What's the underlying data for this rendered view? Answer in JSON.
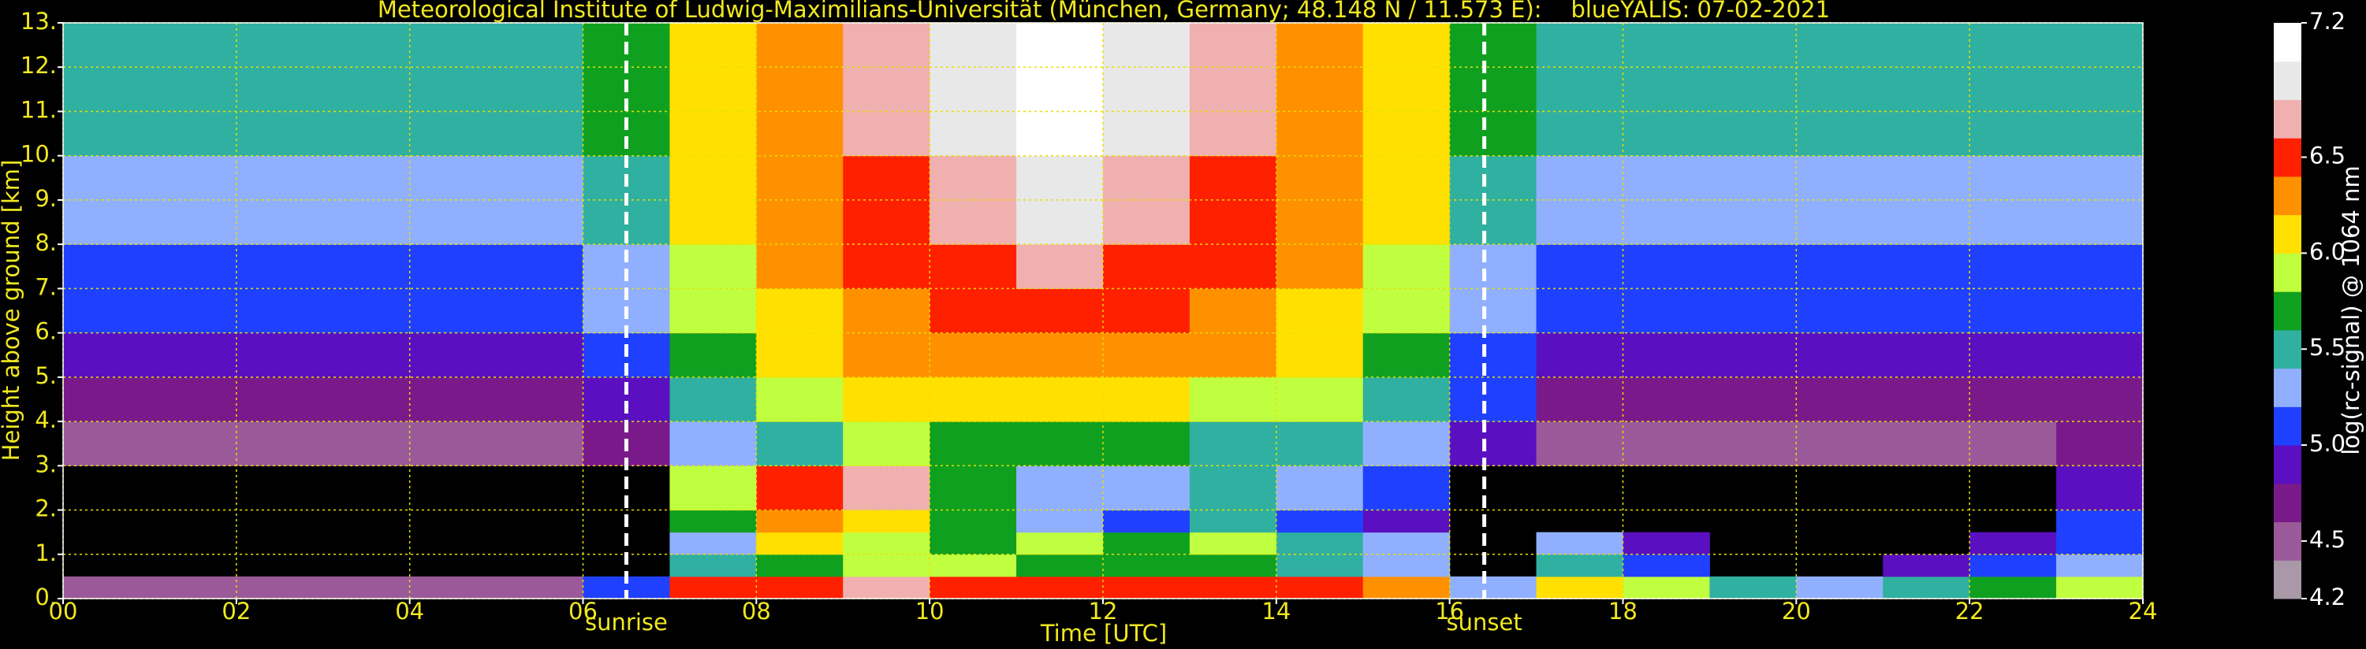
{
  "chart_data": {
    "type": "heatmap",
    "title": "Meteorological Institute of Ludwig-Maximilians-Universität (München, Germany; 48.148 N / 11.573 E):    blueYALIS: 07-02-2021",
    "x_label": "Time [UTC]",
    "y_label": "Height above ground [km]",
    "colorbar_label": "log(rc-signal) @ 1064 nm",
    "x": [
      0,
      1,
      2,
      3,
      4,
      5,
      6,
      7,
      8,
      9,
      10,
      11,
      12,
      13,
      14,
      15,
      16,
      17,
      18,
      19,
      20,
      21,
      22,
      23,
      24
    ],
    "y": [
      0,
      0.5,
      1,
      1.5,
      2,
      3,
      4,
      5,
      6,
      7,
      8,
      10,
      13
    ],
    "z": [
      [
        4.4,
        4.4,
        4.4,
        4.4,
        4.4,
        4.4,
        5.0,
        6.5,
        6.4,
        6.6,
        6.5,
        6.5,
        6.5,
        6.4,
        6.4,
        6.3,
        5.2,
        6.0,
        5.8,
        5.4,
        5.2,
        5.4,
        5.6,
        5.8
      ],
      [
        null,
        null,
        null,
        null,
        null,
        null,
        null,
        5.4,
        5.6,
        5.8,
        5.8,
        5.7,
        5.6,
        5.6,
        5.5,
        5.3,
        null,
        5.4,
        5.0,
        null,
        null,
        4.8,
        5.0,
        5.2
      ],
      [
        null,
        null,
        null,
        null,
        null,
        null,
        null,
        5.2,
        6.0,
        5.8,
        5.6,
        5.8,
        5.6,
        5.8,
        5.4,
        5.2,
        null,
        5.2,
        4.8,
        null,
        null,
        null,
        4.8,
        5.0
      ],
      [
        null,
        null,
        null,
        null,
        null,
        null,
        null,
        5.6,
        6.2,
        6.0,
        5.6,
        5.2,
        5.0,
        5.4,
        5.0,
        4.8,
        null,
        null,
        null,
        null,
        null,
        null,
        null,
        5.0
      ],
      [
        null,
        null,
        null,
        null,
        null,
        null,
        null,
        5.8,
        6.4,
        6.6,
        5.6,
        5.2,
        5.2,
        5.4,
        5.2,
        5.0,
        null,
        null,
        null,
        null,
        null,
        null,
        null,
        4.8
      ],
      [
        4.4,
        4.4,
        4.4,
        4.4,
        4.4,
        4.4,
        4.6,
        5.2,
        5.4,
        5.8,
        5.6,
        5.6,
        5.6,
        5.4,
        5.4,
        5.2,
        4.8,
        4.4,
        4.4,
        4.4,
        4.4,
        4.4,
        4.4,
        4.6
      ],
      [
        4.6,
        4.6,
        4.6,
        4.6,
        4.6,
        4.6,
        4.8,
        5.4,
        5.8,
        6.0,
        6.0,
        6.0,
        6.0,
        5.8,
        5.8,
        5.4,
        5.0,
        4.6,
        4.6,
        4.6,
        4.6,
        4.6,
        4.6,
        4.6
      ],
      [
        4.8,
        4.8,
        4.8,
        4.8,
        4.8,
        4.8,
        5.0,
        5.6,
        6.0,
        6.2,
        6.2,
        6.2,
        6.2,
        6.2,
        6.0,
        5.6,
        5.0,
        4.8,
        4.8,
        4.8,
        4.8,
        4.8,
        4.8,
        4.8
      ],
      [
        5.0,
        5.0,
        5.0,
        5.0,
        5.0,
        5.0,
        5.2,
        5.8,
        6.0,
        6.2,
        6.4,
        6.4,
        6.4,
        6.2,
        6.0,
        5.8,
        5.2,
        5.0,
        5.0,
        5.0,
        5.0,
        5.0,
        5.0,
        5.0
      ],
      [
        5.0,
        5.0,
        5.0,
        5.0,
        5.0,
        5.0,
        5.2,
        5.8,
        6.2,
        6.4,
        6.4,
        6.6,
        6.4,
        6.4,
        6.2,
        5.8,
        5.2,
        5.0,
        5.0,
        5.0,
        5.0,
        5.0,
        5.0,
        5.0
      ],
      [
        5.2,
        5.2,
        5.2,
        5.2,
        5.2,
        5.2,
        5.4,
        6.0,
        6.2,
        6.4,
        6.6,
        6.8,
        6.6,
        6.4,
        6.2,
        6.0,
        5.4,
        5.2,
        5.2,
        5.2,
        5.2,
        5.2,
        5.2,
        5.2
      ],
      [
        5.4,
        5.4,
        5.4,
        5.4,
        5.4,
        5.4,
        5.6,
        6.0,
        6.2,
        6.6,
        6.8,
        7.0,
        6.8,
        6.6,
        6.2,
        6.0,
        5.6,
        5.4,
        5.4,
        5.4,
        5.4,
        5.4,
        5.4,
        5.4
      ]
    ],
    "xlim": [
      0,
      24
    ],
    "ylim": [
      0,
      13
    ],
    "xticks": [
      {
        "value": 0,
        "label": "00"
      },
      {
        "value": 2,
        "label": "02"
      },
      {
        "value": 4,
        "label": "04"
      },
      {
        "value": 6,
        "label": "06"
      },
      {
        "value": 8,
        "label": "08"
      },
      10,
      12,
      14,
      16,
      18,
      20,
      22,
      24
    ],
    "yticks": [
      {
        "value": 0,
        "label": "0."
      },
      {
        "value": 1,
        "label": "1."
      },
      {
        "value": 2,
        "label": "2."
      },
      {
        "value": 3,
        "label": "3."
      },
      {
        "value": 4,
        "label": "4."
      },
      {
        "value": 5,
        "label": "5."
      },
      {
        "value": 6,
        "label": "6."
      },
      {
        "value": 7,
        "label": "7."
      },
      {
        "value": 8,
        "label": "8."
      },
      {
        "value": 9,
        "label": "9."
      },
      {
        "value": 10,
        "label": "10."
      },
      {
        "value": 11,
        "label": "11."
      },
      {
        "value": 12,
        "label": "12."
      },
      {
        "value": 13,
        "label": "13."
      }
    ],
    "grid": true,
    "grid_color": "#e8e000",
    "colormap": {
      "bounds": [
        4.2,
        4.4,
        4.6,
        4.8,
        5.0,
        5.2,
        5.4,
        5.6,
        5.8,
        6.0,
        6.2,
        6.4,
        6.6,
        6.8,
        7.0,
        7.2
      ],
      "colors": [
        "#a898a8",
        "#9a5a9a",
        "#7a1a8a",
        "#5a10c0",
        "#2040ff",
        "#90b0ff",
        "#30b0a0",
        "#10a020",
        "#c0ff40",
        "#ffe000",
        "#ff9000",
        "#ff2000",
        "#f0b0b0",
        "#e8e8e8",
        "#ffffff"
      ]
    },
    "clim": [
      4.2,
      7.2
    ],
    "cticks": [
      4.2,
      4.5,
      {
        "value": 5,
        "label": "5.0"
      },
      5.5,
      {
        "value": 6,
        "label": "6.0"
      },
      6.5,
      7.2
    ],
    "annotations": [
      {
        "x": 6.5,
        "label": "sunrise"
      },
      {
        "x": 16.4,
        "label": "sunset"
      }
    ]
  }
}
